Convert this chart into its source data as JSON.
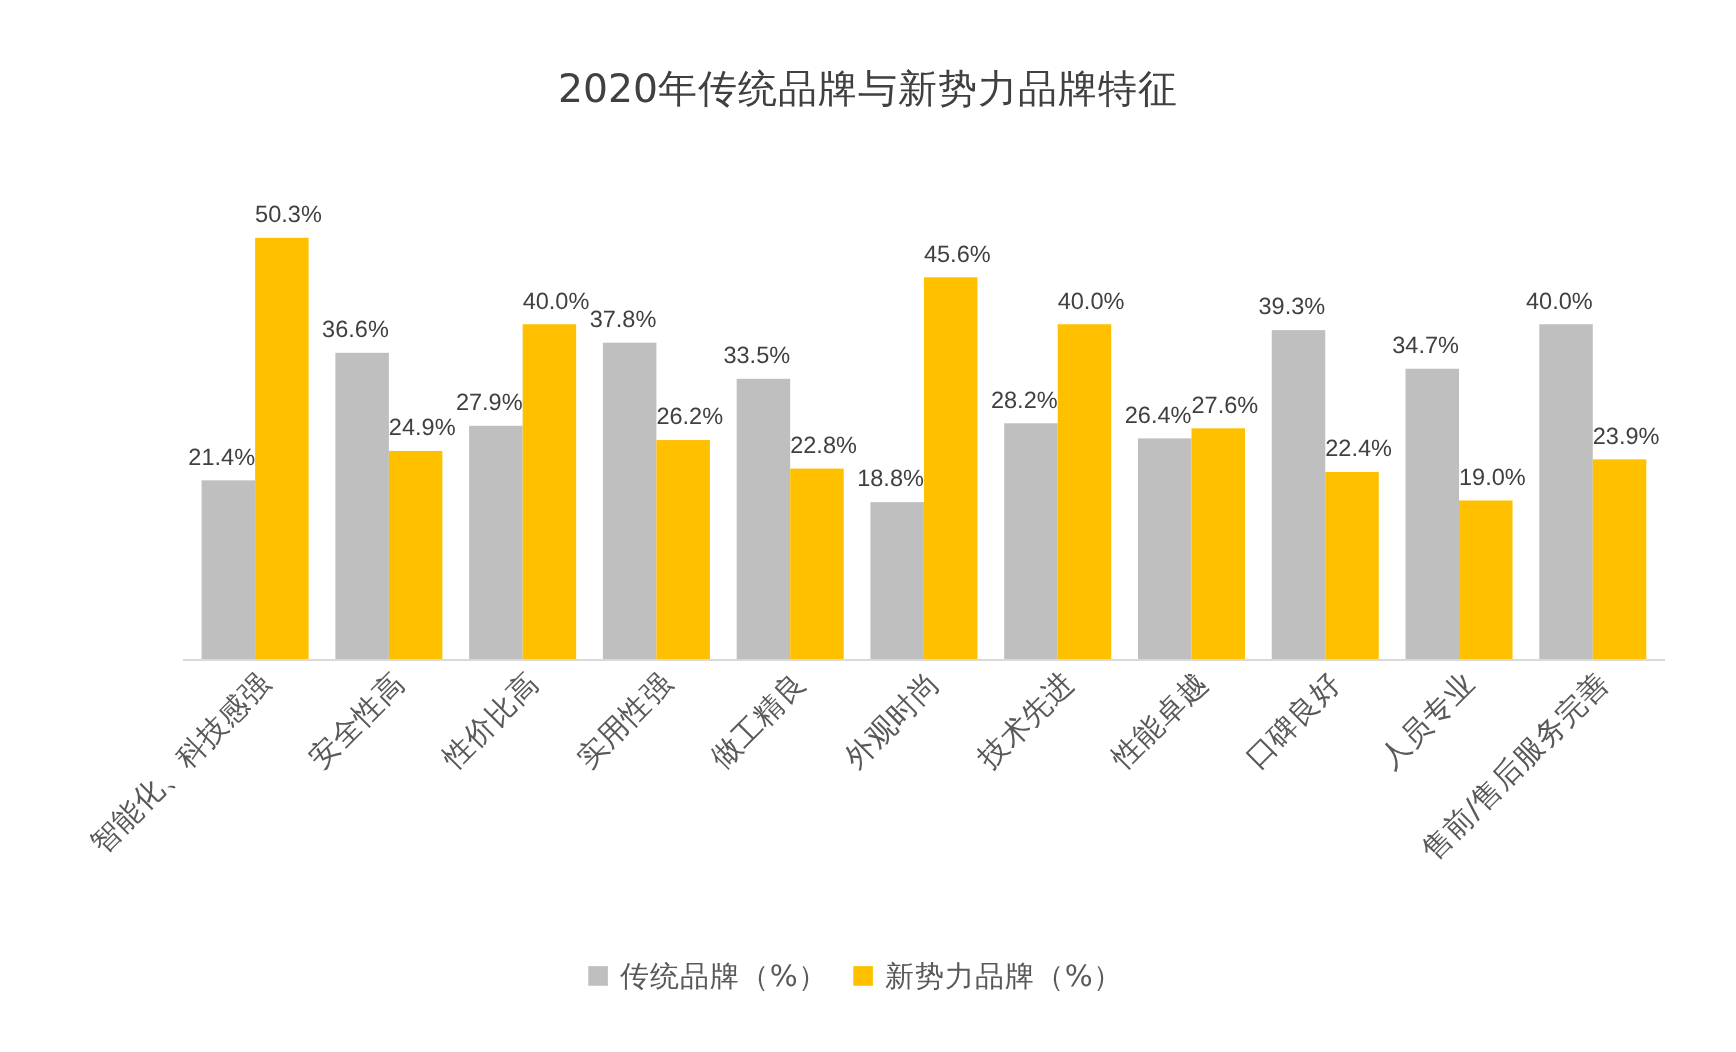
{
  "chart_data": {
    "type": "bar",
    "title": "2020年传统品牌与新势力品牌特征",
    "categories": [
      "智能化、科技感强",
      "安全性高",
      "性价比高",
      "实用性强",
      "做工精良",
      "外观时尚",
      "技术先进",
      "性能卓越",
      "口碑良好",
      "人员专业",
      "售前/售后服务完善"
    ],
    "series": [
      {
        "name": "传统品牌（%）",
        "color": "#bfbfbf",
        "values": [
          21.4,
          36.6,
          27.9,
          37.8,
          33.5,
          18.8,
          28.2,
          26.4,
          39.3,
          34.7,
          40.0
        ],
        "value_labels": [
          "21.4%",
          "36.6%",
          "27.9%",
          "37.8%",
          "33.5%",
          "18.8%",
          "28.2%",
          "26.4%",
          "39.3%",
          "34.7%",
          "40.0%"
        ]
      },
      {
        "name": "新势力品牌（%）",
        "color": "#ffc000",
        "values": [
          50.3,
          24.9,
          40.0,
          26.2,
          22.8,
          45.6,
          40.0,
          27.6,
          22.4,
          19.0,
          23.9
        ],
        "value_labels": [
          "50.3%",
          "24.9%",
          "40.0%",
          "26.2%",
          "22.8%",
          "45.6%",
          "40.0%",
          "27.6%",
          "22.4%",
          "19.0%",
          "23.9%"
        ]
      }
    ],
    "grid": false,
    "legend": "bottom"
  }
}
